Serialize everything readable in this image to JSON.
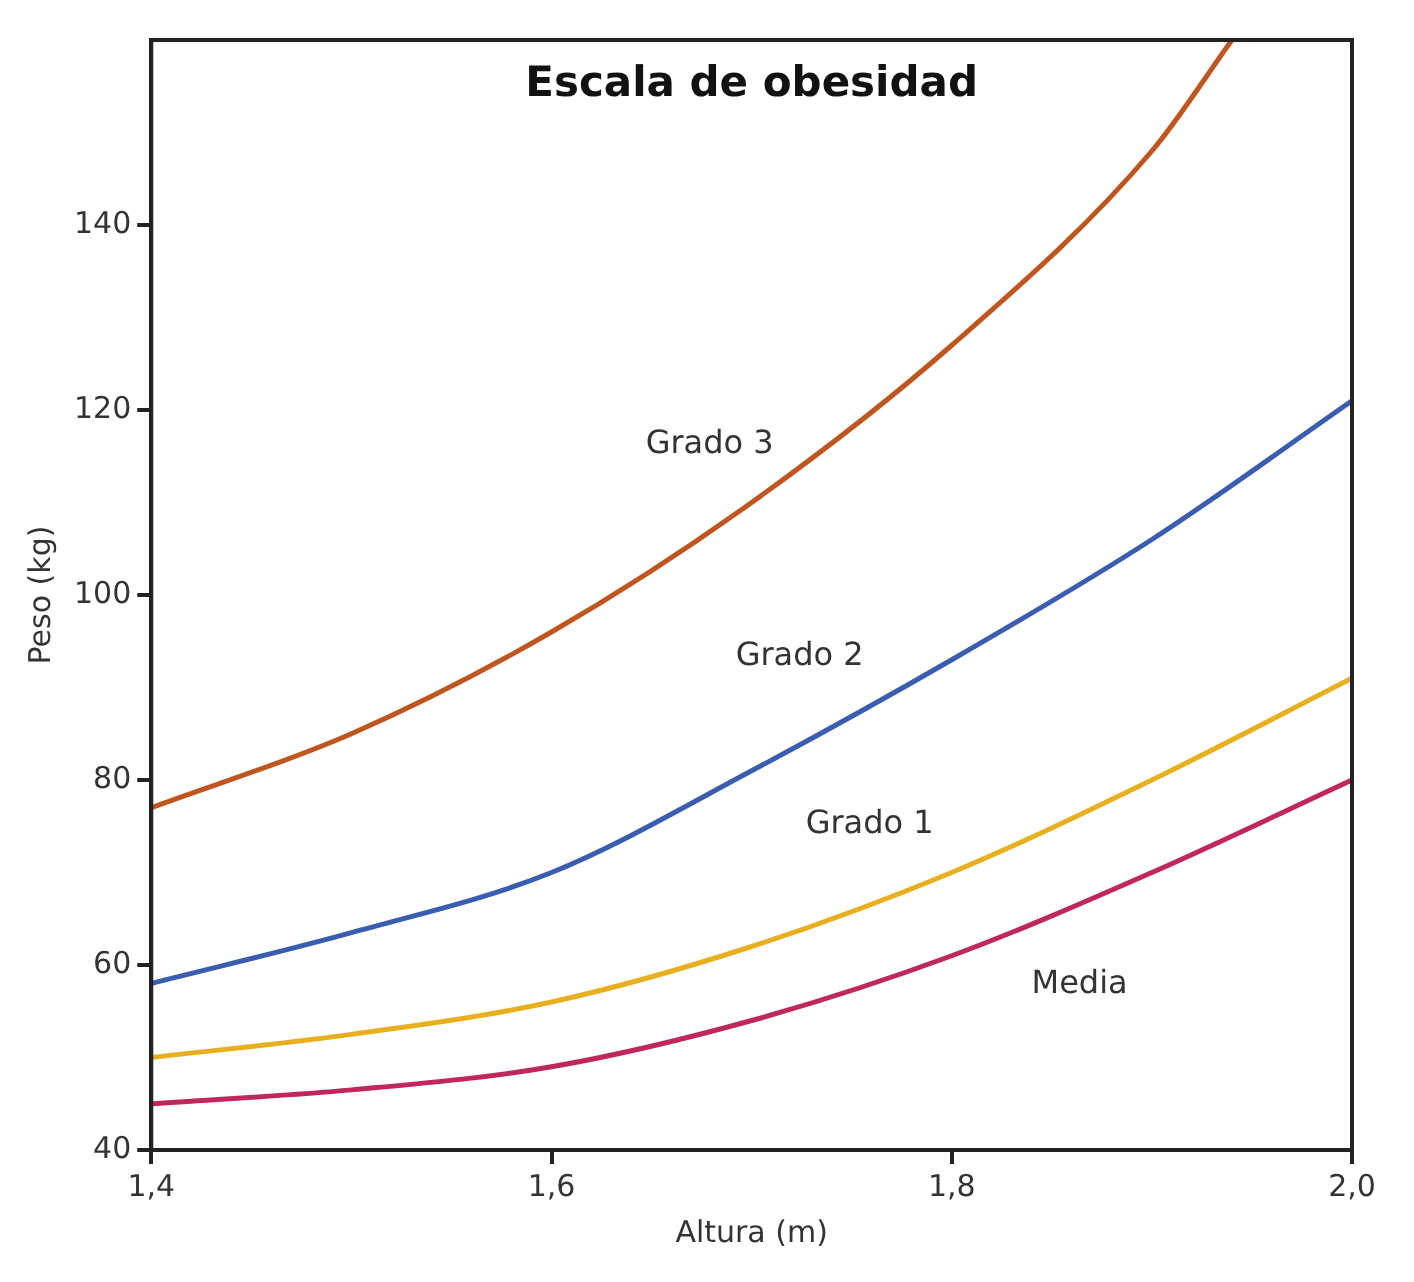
{
  "chart_data": {
    "type": "line",
    "title": "Escala de obesidad",
    "xlabel": "Altura (m)",
    "ylabel": "Peso (kg)",
    "xlim": [
      1.4,
      2.0
    ],
    "xticks": [
      {
        "value": 1.4,
        "label": "1,4"
      },
      {
        "value": 1.6,
        "label": "1,6"
      },
      {
        "value": 1.8,
        "label": "1,8"
      },
      {
        "value": 2.0,
        "label": "2,0"
      }
    ],
    "ylim": [
      40,
      160
    ],
    "yticks": [
      40,
      60,
      80,
      100,
      120,
      140
    ],
    "grid": false,
    "legend": false,
    "marker": "none",
    "line_style": "solid",
    "series": [
      {
        "name": "Grado 3",
        "color": "#c0561f",
        "x": [
          1.4,
          1.5,
          1.6,
          1.7,
          1.8,
          1.9,
          1.94
        ],
        "values": [
          77,
          85,
          96,
          110,
          127,
          148,
          160
        ]
      },
      {
        "name": "Grado 2",
        "color": "#3a5db0",
        "x": [
          1.4,
          1.5,
          1.6,
          1.7,
          1.8,
          1.9,
          2.0
        ],
        "values": [
          58,
          63.5,
          70,
          81,
          93,
          106,
          121
        ]
      },
      {
        "name": "Grado 1",
        "color": "#e8b020",
        "x": [
          1.4,
          1.5,
          1.6,
          1.7,
          1.8,
          1.9,
          2.0
        ],
        "values": [
          50,
          52.5,
          56,
          62,
          70,
          80,
          91
        ]
      },
      {
        "name": "Media",
        "color": "#c0285a",
        "x": [
          1.4,
          1.5,
          1.6,
          1.7,
          1.8,
          1.9,
          2.0
        ],
        "values": [
          45,
          46.5,
          49,
          54,
          61,
          70,
          80
        ]
      }
    ]
  }
}
